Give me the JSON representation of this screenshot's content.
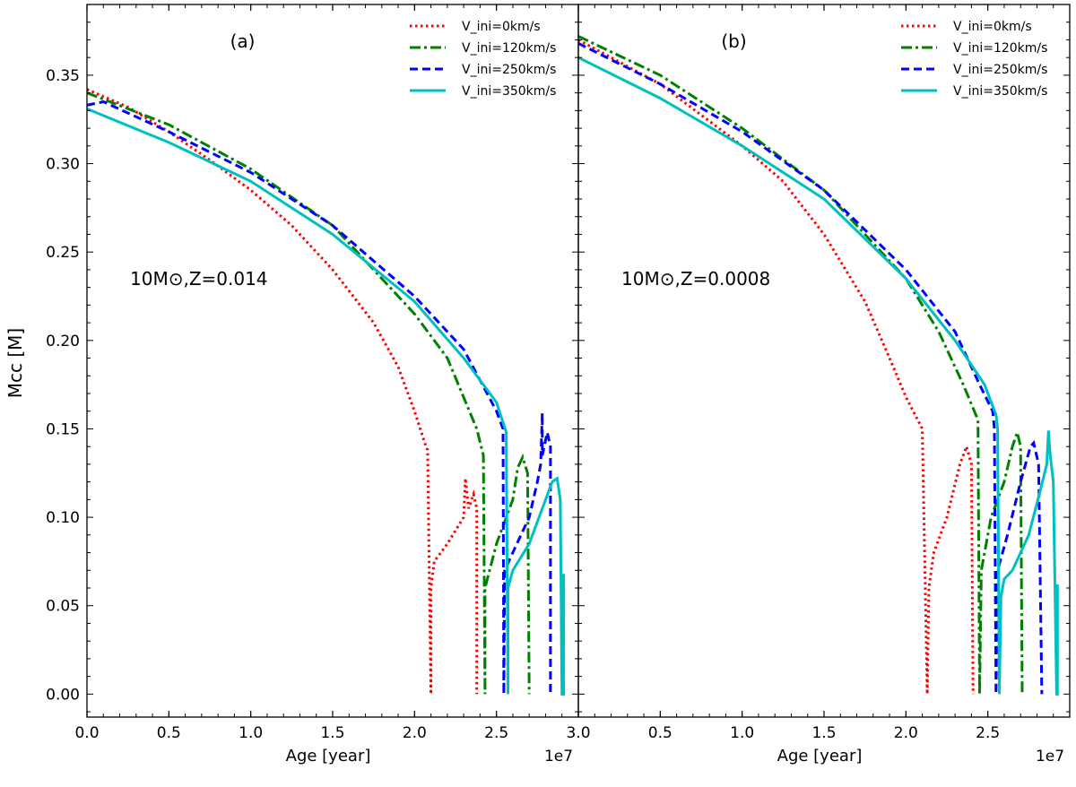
{
  "chart_data": [
    {
      "type": "line",
      "panel_label": "(a)",
      "annotation": "10M⊙,Z=0.014",
      "xlabel": "Age [year]",
      "x_offset_label": "1e7",
      "ylabel": "Mcc [M]",
      "xlim": [
        0.0,
        3.0
      ],
      "ylim": [
        -0.013,
        0.39
      ],
      "xticks": [
        "0.0",
        "0.5",
        "1.0",
        "1.5",
        "2.0",
        "2.5",
        "3.0"
      ],
      "yticks": [
        "0.00",
        "0.05",
        "0.10",
        "0.15",
        "0.20",
        "0.25",
        "0.30",
        "0.35"
      ],
      "grid": false,
      "legend_position": "top-right",
      "series": [
        {
          "name": "V_ini=0km/s",
          "color": "#ff0000",
          "style": "dotted",
          "points": [
            [
              0,
              0.342
            ],
            [
              0.25,
              0.332
            ],
            [
              0.5,
              0.318
            ],
            [
              0.75,
              0.302
            ],
            [
              1.0,
              0.285
            ],
            [
              1.25,
              0.265
            ],
            [
              1.5,
              0.24
            ],
            [
              1.75,
              0.21
            ],
            [
              1.9,
              0.185
            ],
            [
              2.0,
              0.16
            ],
            [
              2.07,
              0.14
            ],
            [
              2.08,
              0.138
            ],
            [
              2.1,
              0.0
            ],
            [
              2.1,
              0.06
            ],
            [
              2.12,
              0.075
            ],
            [
              2.2,
              0.085
            ],
            [
              2.3,
              0.1
            ],
            [
              2.31,
              0.122
            ],
            [
              2.33,
              0.105
            ],
            [
              2.36,
              0.113
            ],
            [
              2.38,
              0.105
            ],
            [
              2.38,
              0.0
            ]
          ]
        },
        {
          "name": "V_ini=120km/s",
          "color": "#008000",
          "style": "dashdot",
          "points": [
            [
              0,
              0.34
            ],
            [
              0.5,
              0.322
            ],
            [
              1.0,
              0.297
            ],
            [
              1.5,
              0.265
            ],
            [
              2.0,
              0.215
            ],
            [
              2.2,
              0.19
            ],
            [
              2.38,
              0.15
            ],
            [
              2.42,
              0.135
            ],
            [
              2.43,
              0.0
            ],
            [
              2.43,
              0.06
            ],
            [
              2.5,
              0.085
            ],
            [
              2.6,
              0.11
            ],
            [
              2.63,
              0.128
            ],
            [
              2.66,
              0.134
            ],
            [
              2.69,
              0.125
            ],
            [
              2.7,
              0.0
            ]
          ]
        },
        {
          "name": "V_ini=250km/s",
          "color": "#0000ff",
          "style": "dashed",
          "points": [
            [
              0,
              0.333
            ],
            [
              0.1,
              0.335
            ],
            [
              0.5,
              0.318
            ],
            [
              1.0,
              0.295
            ],
            [
              1.5,
              0.265
            ],
            [
              2.0,
              0.225
            ],
            [
              2.3,
              0.195
            ],
            [
              2.5,
              0.16
            ],
            [
              2.54,
              0.15
            ],
            [
              2.545,
              0.0
            ],
            [
              2.55,
              0.07
            ],
            [
              2.6,
              0.08
            ],
            [
              2.7,
              0.1
            ],
            [
              2.75,
              0.12
            ],
            [
              2.77,
              0.13
            ],
            [
              2.78,
              0.159
            ],
            [
              2.78,
              0.135
            ],
            [
              2.81,
              0.148
            ],
            [
              2.83,
              0.14
            ],
            [
              2.83,
              0.0
            ]
          ]
        },
        {
          "name": "V_ini=350km/s",
          "color": "#00bfbf",
          "style": "solid",
          "points": [
            [
              0,
              0.331
            ],
            [
              0.5,
              0.312
            ],
            [
              1.0,
              0.29
            ],
            [
              1.5,
              0.26
            ],
            [
              2.0,
              0.222
            ],
            [
              2.3,
              0.19
            ],
            [
              2.5,
              0.165
            ],
            [
              2.56,
              0.148
            ],
            [
              2.57,
              0.0
            ],
            [
              2.57,
              0.06
            ],
            [
              2.6,
              0.07
            ],
            [
              2.7,
              0.085
            ],
            [
              2.8,
              0.11
            ],
            [
              2.84,
              0.12
            ],
            [
              2.87,
              0.122
            ],
            [
              2.89,
              0.11
            ],
            [
              2.9,
              0.0
            ],
            [
              2.91,
              0.0
            ],
            [
              2.91,
              0.068
            ]
          ]
        }
      ]
    },
    {
      "type": "line",
      "panel_label": "(b)",
      "annotation": "10M⊙,Z=0.0008",
      "xlabel": "Age [year]",
      "x_offset_label": "1e7",
      "xlim": [
        0.0,
        3.0
      ],
      "ylim": [
        -0.013,
        0.39
      ],
      "xticks": [
        "0.5",
        "1.0",
        "1.5",
        "2.0",
        "2.5"
      ],
      "grid": false,
      "legend_position": "top-right",
      "series": [
        {
          "name": "V_ini=0km/s",
          "color": "#ff0000",
          "style": "dotted",
          "points": [
            [
              0,
              0.37
            ],
            [
              0.5,
              0.345
            ],
            [
              1.0,
              0.31
            ],
            [
              1.25,
              0.29
            ],
            [
              1.5,
              0.26
            ],
            [
              1.75,
              0.222
            ],
            [
              1.9,
              0.19
            ],
            [
              2.0,
              0.168
            ],
            [
              2.1,
              0.15
            ],
            [
              2.13,
              0.0
            ],
            [
              2.14,
              0.06
            ],
            [
              2.17,
              0.08
            ],
            [
              2.25,
              0.1
            ],
            [
              2.33,
              0.13
            ],
            [
              2.37,
              0.14
            ],
            [
              2.4,
              0.13
            ],
            [
              2.41,
              0.0
            ]
          ]
        },
        {
          "name": "V_ini=120km/s",
          "color": "#008000",
          "style": "dashdot",
          "points": [
            [
              0,
              0.372
            ],
            [
              0.5,
              0.35
            ],
            [
              1.0,
              0.32
            ],
            [
              1.5,
              0.285
            ],
            [
              2.0,
              0.235
            ],
            [
              2.2,
              0.205
            ],
            [
              2.35,
              0.175
            ],
            [
              2.44,
              0.155
            ],
            [
              2.45,
              0.0
            ],
            [
              2.46,
              0.07
            ],
            [
              2.52,
              0.1
            ],
            [
              2.6,
              0.12
            ],
            [
              2.65,
              0.14
            ],
            [
              2.68,
              0.148
            ],
            [
              2.7,
              0.14
            ],
            [
              2.71,
              0.0
            ]
          ]
        },
        {
          "name": "V_ini=250km/s",
          "color": "#0000ff",
          "style": "dashed",
          "points": [
            [
              0,
              0.368
            ],
            [
              0.5,
              0.345
            ],
            [
              1.0,
              0.318
            ],
            [
              1.5,
              0.285
            ],
            [
              2.0,
              0.24
            ],
            [
              2.3,
              0.205
            ],
            [
              2.45,
              0.175
            ],
            [
              2.53,
              0.16
            ],
            [
              2.54,
              0.15
            ],
            [
              2.55,
              0.0
            ],
            [
              2.56,
              0.07
            ],
            [
              2.62,
              0.09
            ],
            [
              2.7,
              0.12
            ],
            [
              2.76,
              0.14
            ],
            [
              2.78,
              0.142
            ],
            [
              2.81,
              0.13
            ],
            [
              2.83,
              0.0
            ]
          ]
        },
        {
          "name": "V_ini=350km/s",
          "color": "#00bfbf",
          "style": "solid",
          "points": [
            [
              0,
              0.36
            ],
            [
              0.5,
              0.337
            ],
            [
              1.0,
              0.31
            ],
            [
              1.5,
              0.28
            ],
            [
              2.0,
              0.235
            ],
            [
              2.3,
              0.2
            ],
            [
              2.48,
              0.175
            ],
            [
              2.55,
              0.158
            ],
            [
              2.56,
              0.15
            ],
            [
              2.57,
              0.0
            ],
            [
              2.58,
              0.055
            ],
            [
              2.6,
              0.065
            ],
            [
              2.65,
              0.07
            ],
            [
              2.75,
              0.09
            ],
            [
              2.82,
              0.115
            ],
            [
              2.86,
              0.13
            ],
            [
              2.87,
              0.149
            ],
            [
              2.88,
              0.136
            ],
            [
              2.9,
              0.12
            ],
            [
              2.92,
              0.0
            ],
            [
              2.925,
              0.0
            ],
            [
              2.925,
              0.062
            ]
          ]
        }
      ]
    }
  ]
}
